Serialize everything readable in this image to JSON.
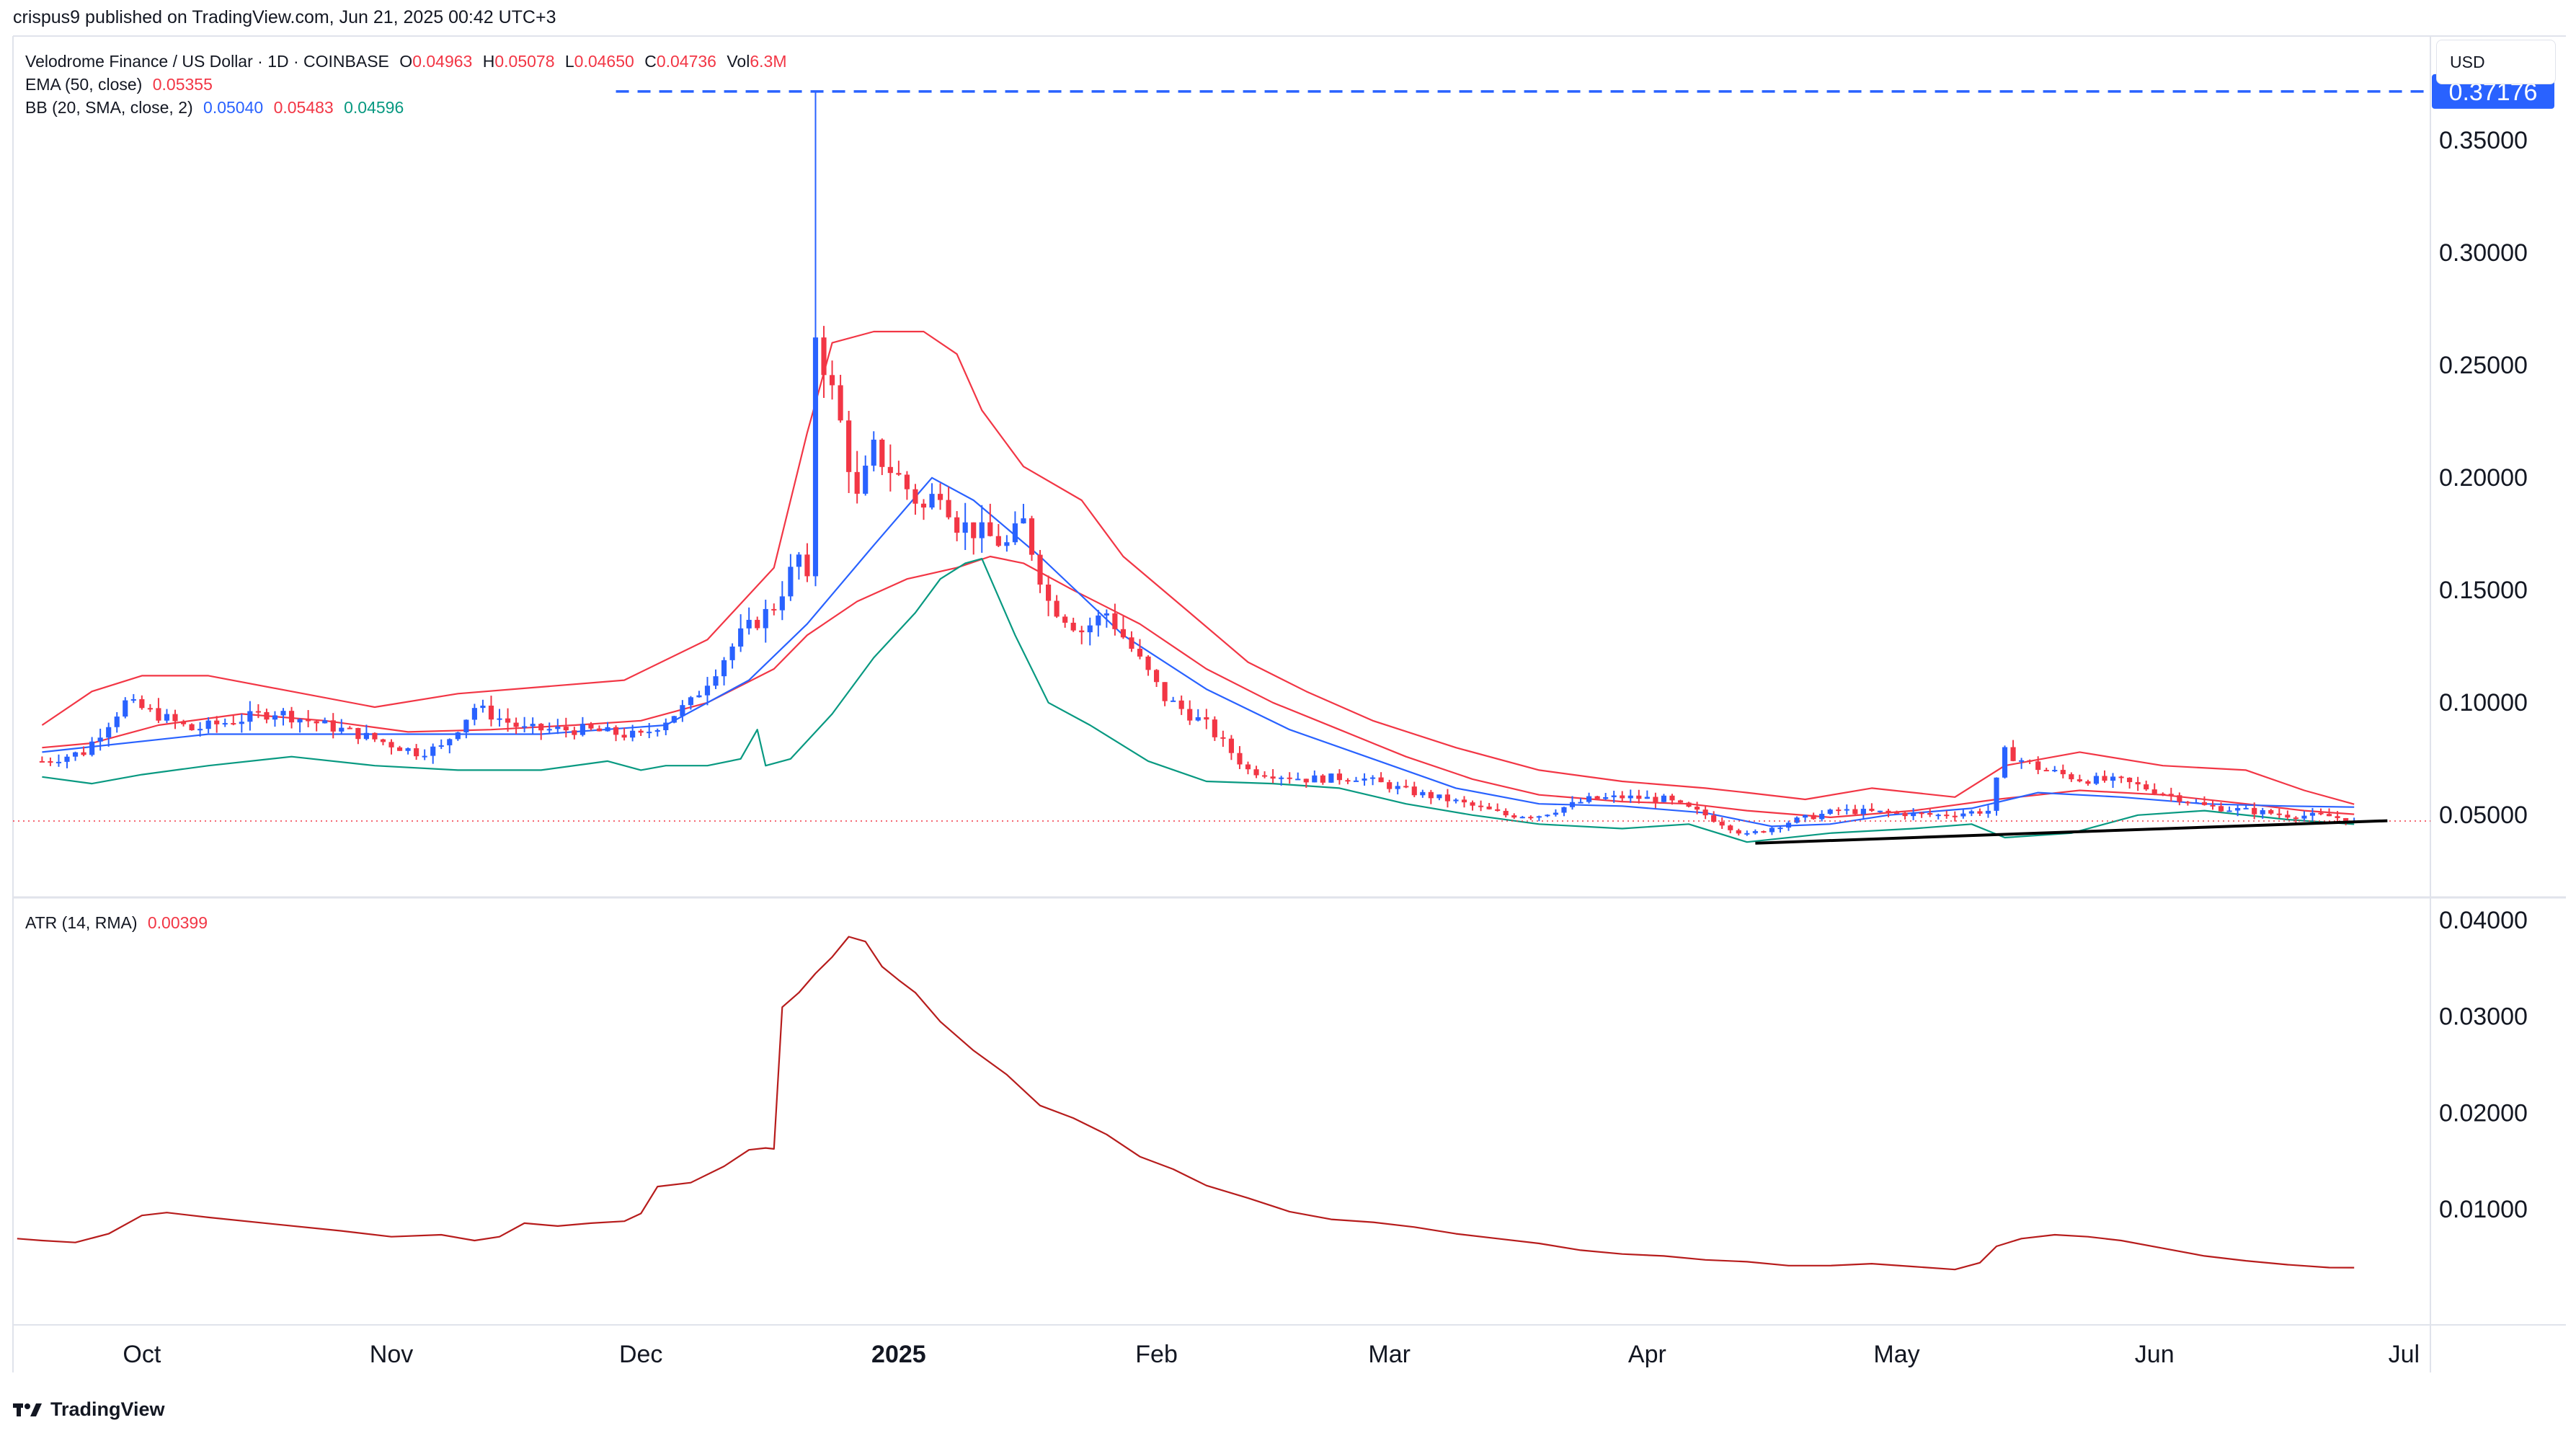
{
  "publisher": "crispus9 published on TradingView.com, Jun 21, 2025 00:42 UTC+3",
  "currency_button": "USD",
  "legend": {
    "symbol": "Velodrome Finance / US Dollar · 1D · COINBASE",
    "o_label": "O",
    "o": "0.04963",
    "h_label": "H",
    "h": "0.05078",
    "l_label": "L",
    "l": "0.04650",
    "c_label": "C",
    "c": "0.04736",
    "vol_label": "Vol",
    "vol": "6.3M",
    "ema_label": "EMA (50, close)",
    "ema": "0.05355",
    "bb_label": "BB (20, SMA, close, 2)",
    "bb_basis": "0.05040",
    "bb_upper": "0.05483",
    "bb_lower": "0.04596",
    "atr_label": "ATR (14, RMA)",
    "atr": "0.00399"
  },
  "brand": "TradingView",
  "colors": {
    "up": "#2962ff",
    "down": "#f23645",
    "ema": "#2962ff",
    "bb_upper": "#f23645",
    "bb_basis": "#f23645",
    "bb_lower": "#089981",
    "atr": "#b71c1c",
    "hline": "#2962ff",
    "price_line": "#f23645",
    "trend": "#000000"
  },
  "chart_data": [
    {
      "type": "candlestick",
      "title": "Velodrome Finance / US Dollar · 1D · COINBASE",
      "ylim": [
        0.015,
        0.39
      ],
      "yticks": [
        0.35,
        0.3,
        0.25,
        0.2,
        0.15,
        0.1,
        0.05
      ],
      "ytick_labels": [
        "0.35000",
        "0.30000",
        "0.25000",
        "0.20000",
        "0.15000",
        "0.10000",
        "0.05000"
      ],
      "xlim": [
        -3.5,
        287
      ],
      "xticks": [
        {
          "day": 12,
          "label": "Oct"
        },
        {
          "day": 42,
          "label": "Nov"
        },
        {
          "day": 72,
          "label": "Dec"
        },
        {
          "day": 103,
          "label": "2025"
        },
        {
          "day": 134,
          "label": "Feb"
        },
        {
          "day": 162,
          "label": "Mar"
        },
        {
          "day": 193,
          "label": "Apr"
        },
        {
          "day": 223,
          "label": "May"
        },
        {
          "day": 254,
          "label": "Jun"
        },
        {
          "day": 284,
          "label": "Jul"
        }
      ],
      "horizontal_line": {
        "value": 0.37176,
        "label": "0.37176",
        "from_day": 69
      },
      "current_price": 0.04736,
      "trendline": {
        "from": [
          206,
          0.0375
        ],
        "to": [
          282,
          0.0475
        ]
      },
      "keypoints_close": [
        [
          0,
          0.074
        ],
        [
          5,
          0.078
        ],
        [
          10,
          0.1
        ],
        [
          13,
          0.096
        ],
        [
          18,
          0.088
        ],
        [
          28,
          0.096
        ],
        [
          38,
          0.086
        ],
        [
          45,
          0.078
        ],
        [
          48,
          0.08
        ],
        [
          52,
          0.098
        ],
        [
          58,
          0.088
        ],
        [
          65,
          0.088
        ],
        [
          72,
          0.085
        ],
        [
          78,
          0.1
        ],
        [
          84,
          0.13
        ],
        [
          88,
          0.143
        ],
        [
          91,
          0.165
        ],
        [
          92,
          0.152
        ],
        [
          93,
          0.265
        ],
        [
          96,
          0.224
        ],
        [
          98,
          0.19
        ],
        [
          100,
          0.212
        ],
        [
          103,
          0.2
        ],
        [
          106,
          0.186
        ],
        [
          108,
          0.196
        ],
        [
          110,
          0.18
        ],
        [
          116,
          0.17
        ],
        [
          118,
          0.18
        ],
        [
          121,
          0.145
        ],
        [
          125,
          0.132
        ],
        [
          128,
          0.14
        ],
        [
          131,
          0.124
        ],
        [
          135,
          0.102
        ],
        [
          140,
          0.09
        ],
        [
          145,
          0.07
        ],
        [
          152,
          0.066
        ],
        [
          158,
          0.067
        ],
        [
          165,
          0.06
        ],
        [
          170,
          0.056
        ],
        [
          176,
          0.05
        ],
        [
          180,
          0.05
        ],
        [
          186,
          0.057
        ],
        [
          190,
          0.058
        ],
        [
          195,
          0.057
        ],
        [
          200,
          0.05
        ],
        [
          205,
          0.041
        ],
        [
          210,
          0.047
        ],
        [
          216,
          0.052
        ],
        [
          222,
          0.051
        ],
        [
          228,
          0.05
        ],
        [
          234,
          0.052
        ],
        [
          236,
          0.078
        ],
        [
          240,
          0.071
        ],
        [
          245,
          0.066
        ],
        [
          250,
          0.065
        ],
        [
          255,
          0.06
        ],
        [
          260,
          0.054
        ],
        [
          265,
          0.052
        ],
        [
          270,
          0.05
        ],
        [
          275,
          0.0495
        ],
        [
          278,
          0.04736
        ]
      ],
      "ema_50": [
        [
          0,
          0.078
        ],
        [
          20,
          0.086
        ],
        [
          40,
          0.086
        ],
        [
          60,
          0.086
        ],
        [
          75,
          0.09
        ],
        [
          85,
          0.11
        ],
        [
          92,
          0.135
        ],
        [
          100,
          0.17
        ],
        [
          107,
          0.2
        ],
        [
          112,
          0.19
        ],
        [
          120,
          0.165
        ],
        [
          130,
          0.13
        ],
        [
          140,
          0.106
        ],
        [
          150,
          0.088
        ],
        [
          160,
          0.075
        ],
        [
          170,
          0.062
        ],
        [
          180,
          0.055
        ],
        [
          190,
          0.054
        ],
        [
          200,
          0.051
        ],
        [
          208,
          0.045
        ],
        [
          215,
          0.046
        ],
        [
          222,
          0.05
        ],
        [
          232,
          0.053
        ],
        [
          240,
          0.06
        ],
        [
          250,
          0.058
        ],
        [
          260,
          0.055
        ],
        [
          270,
          0.054
        ],
        [
          278,
          0.05355
        ]
      ],
      "bb_upper": [
        [
          0,
          0.09
        ],
        [
          6,
          0.105
        ],
        [
          12,
          0.112
        ],
        [
          20,
          0.112
        ],
        [
          30,
          0.105
        ],
        [
          40,
          0.098
        ],
        [
          50,
          0.104
        ],
        [
          60,
          0.107
        ],
        [
          70,
          0.11
        ],
        [
          80,
          0.128
        ],
        [
          88,
          0.16
        ],
        [
          92,
          0.22
        ],
        [
          95,
          0.26
        ],
        [
          100,
          0.265
        ],
        [
          106,
          0.265
        ],
        [
          110,
          0.255
        ],
        [
          113,
          0.23
        ],
        [
          118,
          0.205
        ],
        [
          125,
          0.19
        ],
        [
          130,
          0.165
        ],
        [
          138,
          0.14
        ],
        [
          145,
          0.118
        ],
        [
          152,
          0.105
        ],
        [
          160,
          0.092
        ],
        [
          170,
          0.08
        ],
        [
          180,
          0.07
        ],
        [
          190,
          0.065
        ],
        [
          200,
          0.062
        ],
        [
          205,
          0.06
        ],
        [
          212,
          0.057
        ],
        [
          220,
          0.062
        ],
        [
          230,
          0.058
        ],
        [
          236,
          0.072
        ],
        [
          245,
          0.078
        ],
        [
          255,
          0.072
        ],
        [
          265,
          0.07
        ],
        [
          272,
          0.061
        ],
        [
          278,
          0.05483
        ]
      ],
      "bb_basis": [
        [
          0,
          0.08
        ],
        [
          6,
          0.082
        ],
        [
          14,
          0.09
        ],
        [
          24,
          0.095
        ],
        [
          34,
          0.092
        ],
        [
          44,
          0.087
        ],
        [
          54,
          0.088
        ],
        [
          64,
          0.09
        ],
        [
          72,
          0.092
        ],
        [
          80,
          0.1
        ],
        [
          88,
          0.115
        ],
        [
          92,
          0.13
        ],
        [
          98,
          0.145
        ],
        [
          104,
          0.155
        ],
        [
          110,
          0.16
        ],
        [
          114,
          0.165
        ],
        [
          118,
          0.162
        ],
        [
          124,
          0.15
        ],
        [
          132,
          0.135
        ],
        [
          140,
          0.115
        ],
        [
          148,
          0.1
        ],
        [
          156,
          0.088
        ],
        [
          164,
          0.076
        ],
        [
          172,
          0.066
        ],
        [
          180,
          0.059
        ],
        [
          190,
          0.056
        ],
        [
          198,
          0.055
        ],
        [
          205,
          0.052
        ],
        [
          215,
          0.049
        ],
        [
          225,
          0.052
        ],
        [
          235,
          0.057
        ],
        [
          245,
          0.061
        ],
        [
          255,
          0.059
        ],
        [
          265,
          0.055
        ],
        [
          272,
          0.052
        ],
        [
          278,
          0.0504
        ]
      ],
      "bb_lower": [
        [
          0,
          0.067
        ],
        [
          6,
          0.064
        ],
        [
          12,
          0.068
        ],
        [
          20,
          0.072
        ],
        [
          30,
          0.076
        ],
        [
          40,
          0.072
        ],
        [
          50,
          0.07
        ],
        [
          60,
          0.07
        ],
        [
          68,
          0.074
        ],
        [
          72,
          0.07
        ],
        [
          75,
          0.072
        ],
        [
          80,
          0.072
        ],
        [
          84,
          0.075
        ],
        [
          86,
          0.088
        ],
        [
          87,
          0.072
        ],
        [
          90,
          0.075
        ],
        [
          95,
          0.095
        ],
        [
          100,
          0.12
        ],
        [
          105,
          0.14
        ],
        [
          108,
          0.155
        ],
        [
          111,
          0.162
        ],
        [
          113,
          0.164
        ],
        [
          117,
          0.13
        ],
        [
          121,
          0.1
        ],
        [
          126,
          0.09
        ],
        [
          133,
          0.074
        ],
        [
          140,
          0.065
        ],
        [
          148,
          0.064
        ],
        [
          156,
          0.062
        ],
        [
          164,
          0.055
        ],
        [
          172,
          0.05
        ],
        [
          180,
          0.046
        ],
        [
          190,
          0.044
        ],
        [
          198,
          0.046
        ],
        [
          205,
          0.038
        ],
        [
          215,
          0.042
        ],
        [
          225,
          0.044
        ],
        [
          232,
          0.046
        ],
        [
          236,
          0.04
        ],
        [
          244,
          0.042
        ],
        [
          252,
          0.05
        ],
        [
          260,
          0.052
        ],
        [
          270,
          0.048
        ],
        [
          278,
          0.04596
        ]
      ]
    },
    {
      "type": "line",
      "title": "ATR (14, RMA)",
      "ylim": [
        0.0,
        0.042
      ],
      "yticks": [
        0.04,
        0.03,
        0.02,
        0.01
      ],
      "ytick_labels": [
        "0.04000",
        "0.03000",
        "0.02000",
        "0.01000"
      ],
      "xlim": [
        -3.5,
        287
      ],
      "series": [
        {
          "name": "ATR (14, RMA)",
          "points": [
            [
              -3,
              0.007
            ],
            [
              0,
              0.0068
            ],
            [
              4,
              0.0066
            ],
            [
              8,
              0.0075
            ],
            [
              12,
              0.0094
            ],
            [
              15,
              0.0097
            ],
            [
              20,
              0.0092
            ],
            [
              28,
              0.0085
            ],
            [
              36,
              0.0078
            ],
            [
              42,
              0.0072
            ],
            [
              48,
              0.0074
            ],
            [
              52,
              0.0068
            ],
            [
              55,
              0.0072
            ],
            [
              58,
              0.0086
            ],
            [
              62,
              0.0083
            ],
            [
              66,
              0.0086
            ],
            [
              70,
              0.0088
            ],
            [
              72,
              0.0096
            ],
            [
              74,
              0.0124
            ],
            [
              78,
              0.0128
            ],
            [
              82,
              0.0145
            ],
            [
              85,
              0.0162
            ],
            [
              87,
              0.0164
            ],
            [
              88,
              0.0163
            ],
            [
              89,
              0.031
            ],
            [
              91,
              0.0325
            ],
            [
              93,
              0.0345
            ],
            [
              95,
              0.0362
            ],
            [
              97,
              0.0383
            ],
            [
              99,
              0.0378
            ],
            [
              101,
              0.0352
            ],
            [
              103,
              0.0338
            ],
            [
              105,
              0.0325
            ],
            [
              108,
              0.0295
            ],
            [
              112,
              0.0265
            ],
            [
              116,
              0.024
            ],
            [
              120,
              0.0208
            ],
            [
              124,
              0.0195
            ],
            [
              128,
              0.0178
            ],
            [
              132,
              0.0155
            ],
            [
              136,
              0.0142
            ],
            [
              140,
              0.0125
            ],
            [
              145,
              0.0112
            ],
            [
              150,
              0.0098
            ],
            [
              155,
              0.009
            ],
            [
              160,
              0.0087
            ],
            [
              165,
              0.0082
            ],
            [
              170,
              0.0075
            ],
            [
              175,
              0.007
            ],
            [
              180,
              0.0065
            ],
            [
              185,
              0.0058
            ],
            [
              190,
              0.0054
            ],
            [
              195,
              0.0052
            ],
            [
              200,
              0.0048
            ],
            [
              205,
              0.0046
            ],
            [
              210,
              0.0042
            ],
            [
              215,
              0.0042
            ],
            [
              220,
              0.0044
            ],
            [
              225,
              0.0041
            ],
            [
              230,
              0.0038
            ],
            [
              233,
              0.0045
            ],
            [
              235,
              0.0062
            ],
            [
              238,
              0.007
            ],
            [
              242,
              0.0074
            ],
            [
              246,
              0.0072
            ],
            [
              250,
              0.0068
            ],
            [
              255,
              0.006
            ],
            [
              260,
              0.0052
            ],
            [
              265,
              0.0047
            ],
            [
              270,
              0.0043
            ],
            [
              275,
              0.004
            ],
            [
              278,
              0.00399
            ]
          ]
        }
      ]
    }
  ]
}
